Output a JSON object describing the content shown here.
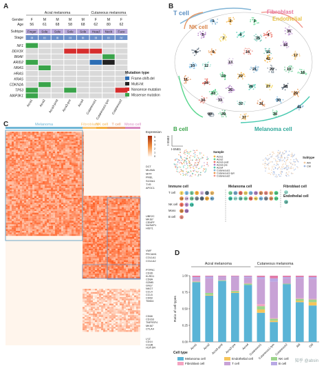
{
  "letters": {
    "a": "A",
    "b": "B",
    "c": "C",
    "d": "D"
  },
  "panelA": {
    "groups": [
      "Acral melanoma",
      "Cutaneous melanoma"
    ],
    "row_labels": [
      "Gender",
      "Age",
      "Subtype",
      "Stage"
    ],
    "gender": [
      "F",
      "M",
      "M",
      "M",
      "M",
      "F",
      "M",
      "F"
    ],
    "age": [
      "56",
      "61",
      "68",
      "58",
      "68",
      "62",
      "80",
      "62"
    ],
    "subtype": [
      "Finger",
      "Sole",
      "Sole",
      "Sole",
      "Sole",
      "Head",
      "Neck",
      "Face"
    ],
    "stage": [
      "III",
      "III",
      "III",
      "III",
      "III",
      "III",
      "III",
      "IV"
    ],
    "genes": [
      "NF1",
      "DDX3X",
      "BRAF",
      "ARID2",
      "NRAS",
      "HRAS",
      "KRAS",
      "CDKN2A",
      "TP53",
      "MAP3K1"
    ],
    "samples": [
      "Acra1",
      "Acra2",
      "Acra3-post",
      "Acra3-pre",
      "Acra4",
      "Cutaneous1",
      "Cutaneous1-lym",
      "Cutaneous2"
    ],
    "mutations": [
      {
        "gene": 0,
        "sample": 0,
        "type": 3
      },
      {
        "gene": 1,
        "sample": 3,
        "type": 2
      },
      {
        "gene": 1,
        "sample": 4,
        "type": 2
      },
      {
        "gene": 1,
        "sample": 5,
        "type": 2
      },
      {
        "gene": 2,
        "sample": 6,
        "type": 3
      },
      {
        "gene": 3,
        "sample": 0,
        "type": 3
      },
      {
        "gene": 3,
        "sample": 5,
        "type": 0
      },
      {
        "gene": 3,
        "sample": 6,
        "type": 1
      },
      {
        "gene": 4,
        "sample": 1,
        "type": 3
      },
      {
        "gene": 7,
        "sample": 1,
        "type": 3
      },
      {
        "gene": 8,
        "sample": 0,
        "type": 3
      },
      {
        "gene": 8,
        "sample": 3,
        "type": 3
      },
      {
        "gene": 8,
        "sample": 7,
        "type": 2
      },
      {
        "gene": 9,
        "sample": 0,
        "type": 3
      }
    ],
    "legend_title": "Mutation type",
    "legend": [
      "Frame-shift-del",
      "Multi-hit",
      "Nonsense mutation",
      "Missense mutation"
    ],
    "colors": {
      "frame": "#2c6db4",
      "multi": "#222222",
      "nonsense": "#d62d2d",
      "missense": "#3aa44a",
      "subtype": "#b8a8d8",
      "stage": "#6a8fc9",
      "gender": "#5c7fb8"
    }
  },
  "panelB": {
    "labels": {
      "tcell": "T cell",
      "nk": "NK cell",
      "fibro": "Fibroblast",
      "endo": "Endothelial",
      "bcell": "B cell",
      "mel": "Melanoma cell"
    },
    "clusters": [
      "1",
      "2",
      "3",
      "4",
      "5",
      "6",
      "7",
      "8",
      "9",
      "10",
      "11",
      "12",
      "13",
      "14",
      "15",
      "16",
      "17",
      "18",
      "19",
      "20",
      "21",
      "22",
      "23",
      "24",
      "25",
      "26",
      "27",
      "28",
      "29",
      "30",
      "31",
      "32",
      "33",
      "34",
      "35",
      "36",
      "37",
      "38",
      "39",
      "40",
      "41",
      "42",
      "43"
    ],
    "axis_x": "t-SNE1",
    "axis_y": "t-SNE2",
    "sample_legend_title": "Sample",
    "samples": [
      "Acra1",
      "Acra2",
      "Acra3-post",
      "Acra3-pre",
      "Acra4",
      "Cutaneous1",
      "Cutaneous1-lym",
      "Cutaneous2"
    ],
    "subtype_legend_title": "Subtype",
    "subtypes": [
      "AM",
      "CM"
    ],
    "immune_title": "Immune cell",
    "melanoma_title": "Melanoma cell",
    "fibro_title": "Fibroblast cell",
    "endo_title": "Endothelial cell",
    "tcell_row": "T cell",
    "nk_row": "NK cell",
    "mono_row": "Mono",
    "bcell_row": "B cell",
    "tcell_ids": [
      "2",
      "3",
      "6",
      "7",
      "4",
      "9",
      "12",
      "16",
      "24",
      "26",
      "13",
      "29",
      "27",
      "40"
    ],
    "nk_ids": [
      "1",
      "5",
      "15"
    ],
    "mono_ids": [
      "36",
      "28"
    ],
    "bcell_ids": [
      "11"
    ],
    "mel_ids": [
      "19",
      "20",
      "21",
      "22",
      "23",
      "25",
      "30",
      "31",
      "32",
      "34",
      "35",
      "37",
      "38",
      "39",
      "41",
      "42",
      "43",
      "33",
      "10",
      "14"
    ],
    "fibro_ids": [
      "17"
    ],
    "endo_ids": [
      "18"
    ]
  },
  "panelC": {
    "groups": [
      "Melanoma",
      "Fibroblast",
      "NK cell",
      "T cell",
      "Mono cell"
    ],
    "legend_title": "Expression",
    "legend_ticks": [
      "5",
      "4",
      "3",
      "2",
      "1",
      "0"
    ],
    "genes_top": [
      "DCT",
      "MLANA",
      "MITF",
      "PMEL",
      "S100A1",
      "TYR",
      "APOC1"
    ],
    "genes_mid": [
      "UBE2C",
      "MKI67",
      "CENPF",
      "NUSAP1",
      "HIST1"
    ],
    "genes_fib": [
      "VWF",
      "PECAM1",
      "COL1A1",
      "COL1A2"
    ],
    "genes_imm": [
      "PTPRC",
      "CD3D",
      "KLRD1",
      "CD8A",
      "GZMB",
      "GNLY",
      "NKG7",
      "CCL4",
      "CCL5",
      "CD69",
      "TIMD4"
    ],
    "genes_low": [
      "CD68",
      "CD163",
      "TNFRSF4",
      "MKI67",
      "CTLA4"
    ],
    "genes_bot": [
      "LYZ",
      "CD14",
      "C1QB",
      "HLA-DR"
    ]
  },
  "panelD": {
    "groups": [
      "Acral melanoma",
      "Cutaneous melanoma"
    ],
    "ylabel": "Ratio of cell types",
    "yticks": [
      "0.00",
      "0.25",
      "0.50",
      "0.75",
      "1.00"
    ],
    "legend_title": "Cell type",
    "watermark": "知乎 @absin"
  },
  "chart_data": {
    "type": "bar",
    "categories": [
      "Acra1",
      "Acra2",
      "Acra3-post",
      "Acra3-pre",
      "Acra4",
      "Cutaneous1",
      "Cutaneous1-lym",
      "Cutaneous2",
      "AM",
      "CM"
    ],
    "series": [
      {
        "name": "Melanoma cell",
        "color": "#5ab4d6",
        "values": [
          0.9,
          0.7,
          0.92,
          0.74,
          0.86,
          0.44,
          0.3,
          0.87,
          0.6,
          0.55
        ]
      },
      {
        "name": "Endothelial cell",
        "color": "#f6c55a",
        "values": [
          0.0,
          0.01,
          0.0,
          0.01,
          0.0,
          0.05,
          0.02,
          0.0,
          0.02,
          0.05
        ]
      },
      {
        "name": "NK cell",
        "color": "#9dd48c",
        "values": [
          0.01,
          0.03,
          0.01,
          0.02,
          0.02,
          0.05,
          0.03,
          0.01,
          0.03,
          0.04
        ]
      },
      {
        "name": "Fibroblast cell",
        "color": "#f4a3c0",
        "values": [
          0.01,
          0.0,
          0.0,
          0.01,
          0.01,
          0.03,
          0.01,
          0.0,
          0.01,
          0.01
        ]
      },
      {
        "name": "T cell",
        "color": "#c8a2d6",
        "values": [
          0.04,
          0.22,
          0.05,
          0.2,
          0.08,
          0.38,
          0.55,
          0.08,
          0.3,
          0.3
        ]
      },
      {
        "name": "B cell",
        "color": "#b8a8e4",
        "values": [
          0.02,
          0.03,
          0.01,
          0.01,
          0.02,
          0.03,
          0.05,
          0.02,
          0.02,
          0.03
        ]
      },
      {
        "name": "Mono",
        "color": "#e07aa8",
        "values": [
          0.02,
          0.01,
          0.01,
          0.01,
          0.01,
          0.02,
          0.04,
          0.02,
          0.02,
          0.02
        ]
      }
    ],
    "ylabel": "Ratio of cell types",
    "ylim": [
      0,
      1
    ]
  }
}
